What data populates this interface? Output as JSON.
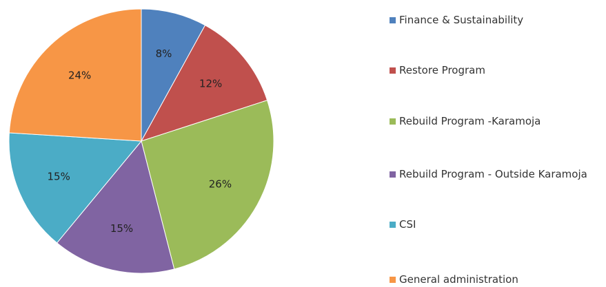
{
  "chart_data": {
    "type": "pie",
    "categories": [
      "Finance & Sustainability",
      "Restore Program",
      "Rebuild Program -Karamoja",
      "Rebuild Program - Outside Karamoja",
      "CSI",
      "General administration"
    ],
    "values": [
      8,
      12,
      26,
      15,
      15,
      24
    ],
    "value_labels": [
      "8%",
      "12%",
      "26%",
      "15%",
      "15%",
      "24%"
    ],
    "colors": [
      "#4f81bd",
      "#c0504d",
      "#9bbb59",
      "#8064a2",
      "#4bacc6",
      "#f79646"
    ],
    "legend": "right"
  }
}
